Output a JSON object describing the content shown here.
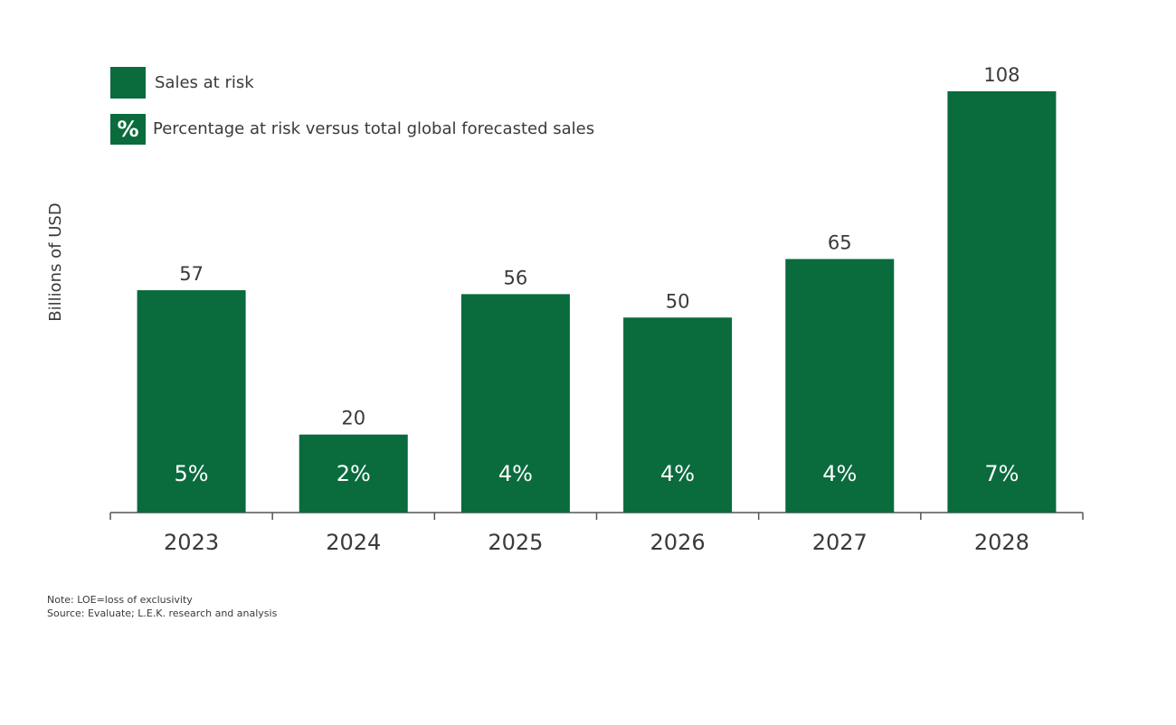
{
  "chart_data": {
    "type": "bar",
    "y_axis_label": "Billions of USD",
    "categories": [
      "2023",
      "2024",
      "2025",
      "2026",
      "2027",
      "2028"
    ],
    "series": [
      {
        "name": "Sales at risk",
        "color": "#0a6b3d",
        "values": [
          57,
          20,
          56,
          50,
          65,
          108
        ]
      }
    ],
    "percent_labels": {
      "name": "Percentage at risk versus total global forecasted sales",
      "symbol": "%",
      "values": [
        5,
        2,
        4,
        4,
        4,
        7
      ],
      "value_labels": [
        "5%",
        "2%",
        "4%",
        "4%",
        "4%",
        "7%"
      ]
    },
    "notes": [
      "Note: LOE=loss of exclusivity",
      "Source: Evaluate; L.E.K. research and analysis"
    ]
  }
}
